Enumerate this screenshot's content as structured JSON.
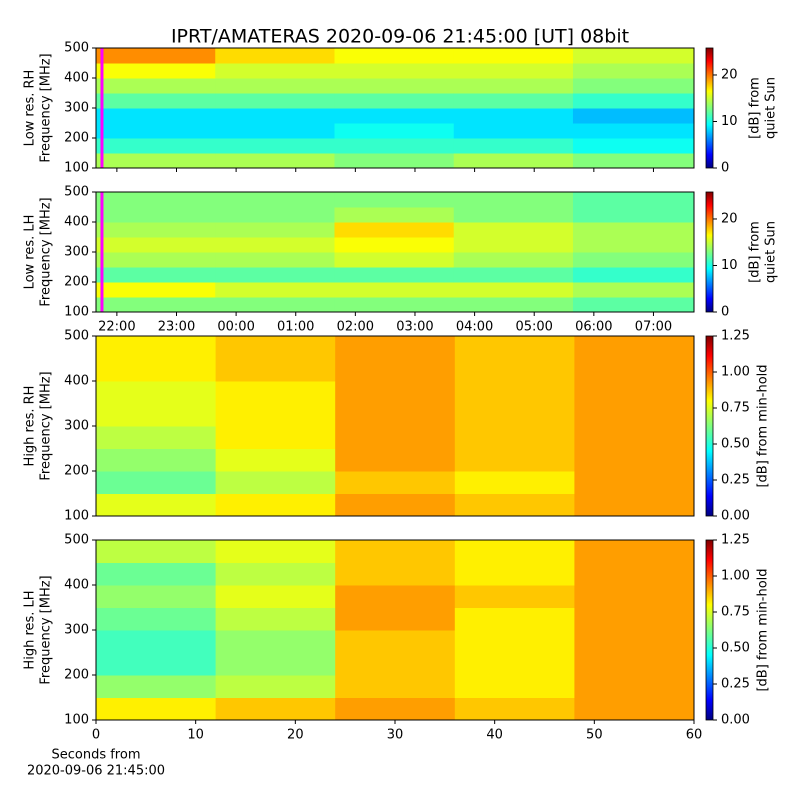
{
  "chart_data": [
    {
      "type": "heatmap",
      "title": "IPRT/AMATERAS 2020-09-06 21:45:00 [UT]   08bit",
      "ylabel": [
        "Low res. RH",
        "Frequency [MHz]"
      ],
      "ylim": [
        100,
        500
      ],
      "yticks": [
        100,
        200,
        300,
        400,
        500
      ],
      "xlim": [
        21.65,
        31.68
      ],
      "xticks": [
        22,
        23,
        24,
        25,
        26,
        27,
        28,
        29,
        30,
        31
      ],
      "xbins": [
        21.65,
        23.65,
        25.65,
        27.65,
        29.65,
        31.68
      ],
      "ybins": [
        100,
        150,
        200,
        250,
        300,
        350,
        400,
        450,
        500
      ],
      "values": [
        [
          14,
          14,
          13,
          14,
          13
        ],
        [
          11,
          11,
          11,
          11,
          10
        ],
        [
          9,
          9,
          10,
          9,
          9
        ],
        [
          9,
          9,
          9,
          9,
          8
        ],
        [
          12,
          12,
          12,
          12,
          11
        ],
        [
          14,
          14,
          14,
          14,
          13
        ],
        [
          16,
          15,
          15,
          15,
          14
        ],
        [
          19,
          17,
          16,
          16,
          15
        ]
      ],
      "marker_x": 21.75,
      "marker_color": "#ff00ff",
      "clim": [
        0,
        25.8
      ],
      "cticks": [
        0,
        10,
        20
      ],
      "clabel": [
        "[dB] from",
        "quiet Sun"
      ],
      "colormap": "jet"
    },
    {
      "type": "heatmap",
      "ylabel": [
        "Low res. LH",
        "Frequency [MHz]"
      ],
      "ylim": [
        100,
        500
      ],
      "yticks": [
        100,
        200,
        300,
        400,
        500
      ],
      "xlim": [
        21.65,
        31.68
      ],
      "xticks": [
        {
          "value": 22,
          "label": "22:00"
        },
        {
          "value": 23,
          "label": "23:00"
        },
        {
          "value": 24,
          "label": "00:00"
        },
        {
          "value": 25,
          "label": "01:00"
        },
        {
          "value": 26,
          "label": "02:00"
        },
        {
          "value": 27,
          "label": "03:00"
        },
        {
          "value": 28,
          "label": "04:00"
        },
        {
          "value": 29,
          "label": "05:00"
        },
        {
          "value": 30,
          "label": "06:00"
        },
        {
          "value": 31,
          "label": "07:00"
        }
      ],
      "xbins": [
        21.65,
        23.65,
        25.65,
        27.65,
        29.65,
        31.68
      ],
      "ybins": [
        100,
        150,
        200,
        250,
        300,
        350,
        400,
        450,
        500
      ],
      "values": [
        [
          13,
          13,
          13,
          13,
          12
        ],
        [
          16,
          15,
          15,
          15,
          14
        ],
        [
          12,
          12,
          12,
          12,
          11
        ],
        [
          14,
          14,
          15,
          14,
          13
        ],
        [
          15,
          15,
          16,
          15,
          14
        ],
        [
          14,
          14,
          17,
          15,
          14
        ],
        [
          13,
          13,
          14,
          13,
          12
        ],
        [
          13,
          13,
          13,
          13,
          12
        ]
      ],
      "marker_x": 21.75,
      "marker_color": "#ff00ff",
      "clim": [
        0,
        25.8
      ],
      "cticks": [
        0,
        10,
        20
      ],
      "clabel": [
        "[dB] from",
        "quiet Sun"
      ],
      "colormap": "jet"
    },
    {
      "type": "heatmap",
      "ylabel": [
        "High res. RH",
        "Frequency [MHz]"
      ],
      "ylim": [
        100,
        500
      ],
      "yticks": [
        100,
        200,
        300,
        400,
        500
      ],
      "xlim": [
        0,
        60
      ],
      "xbins": [
        0,
        12,
        24,
        36,
        48,
        60
      ],
      "ybins": [
        100,
        150,
        200,
        250,
        300,
        350,
        400,
        450,
        500
      ],
      "values": [
        [
          0.75,
          0.8,
          0.9,
          0.85,
          0.9
        ],
        [
          0.6,
          0.7,
          0.85,
          0.8,
          0.9
        ],
        [
          0.65,
          0.75,
          0.9,
          0.85,
          0.9
        ],
        [
          0.7,
          0.8,
          0.9,
          0.85,
          0.9
        ],
        [
          0.75,
          0.8,
          0.9,
          0.85,
          0.9
        ],
        [
          0.75,
          0.8,
          0.9,
          0.85,
          0.9
        ],
        [
          0.8,
          0.85,
          0.9,
          0.85,
          0.9
        ],
        [
          0.8,
          0.85,
          0.9,
          0.85,
          0.9
        ]
      ],
      "clim": [
        0,
        1.25
      ],
      "cticks": [
        {
          "value": 0,
          "label": "0.00"
        },
        {
          "value": 0.25,
          "label": "0.25"
        },
        {
          "value": 0.5,
          "label": "0.50"
        },
        {
          "value": 0.75,
          "label": "0.75"
        },
        {
          "value": 1,
          "label": "1.00"
        },
        {
          "value": 1.25,
          "label": "1.25"
        }
      ],
      "clabel": [
        "[dB] from min-hold"
      ],
      "colormap": "jet"
    },
    {
      "type": "heatmap",
      "ylabel": [
        "High res. LH",
        "Frequency [MHz]"
      ],
      "xlabel": [
        "Seconds from",
        "2020-09-06 21:45:00"
      ],
      "ylim": [
        100,
        500
      ],
      "yticks": [
        100,
        200,
        300,
        400,
        500
      ],
      "xlim": [
        0,
        60
      ],
      "xticks": [
        0,
        10,
        20,
        30,
        40,
        50,
        60
      ],
      "xbins": [
        0,
        12,
        24,
        36,
        48,
        60
      ],
      "ybins": [
        100,
        150,
        200,
        250,
        300,
        350,
        400,
        450,
        500
      ],
      "values": [
        [
          0.8,
          0.85,
          0.9,
          0.85,
          0.9
        ],
        [
          0.65,
          0.7,
          0.85,
          0.8,
          0.9
        ],
        [
          0.55,
          0.65,
          0.85,
          0.8,
          0.9
        ],
        [
          0.55,
          0.65,
          0.85,
          0.8,
          0.9
        ],
        [
          0.6,
          0.7,
          0.9,
          0.8,
          0.9
        ],
        [
          0.65,
          0.75,
          0.9,
          0.85,
          0.9
        ],
        [
          0.6,
          0.7,
          0.85,
          0.8,
          0.9
        ],
        [
          0.7,
          0.75,
          0.85,
          0.8,
          0.9
        ]
      ],
      "clim": [
        0,
        1.25
      ],
      "cticks": [
        {
          "value": 0,
          "label": "0.00"
        },
        {
          "value": 0.25,
          "label": "0.25"
        },
        {
          "value": 0.5,
          "label": "0.50"
        },
        {
          "value": 0.75,
          "label": "0.75"
        },
        {
          "value": 1,
          "label": "1.00"
        },
        {
          "value": 1.25,
          "label": "1.25"
        }
      ],
      "clabel": [
        "[dB] from min-hold"
      ],
      "colormap": "jet"
    }
  ]
}
